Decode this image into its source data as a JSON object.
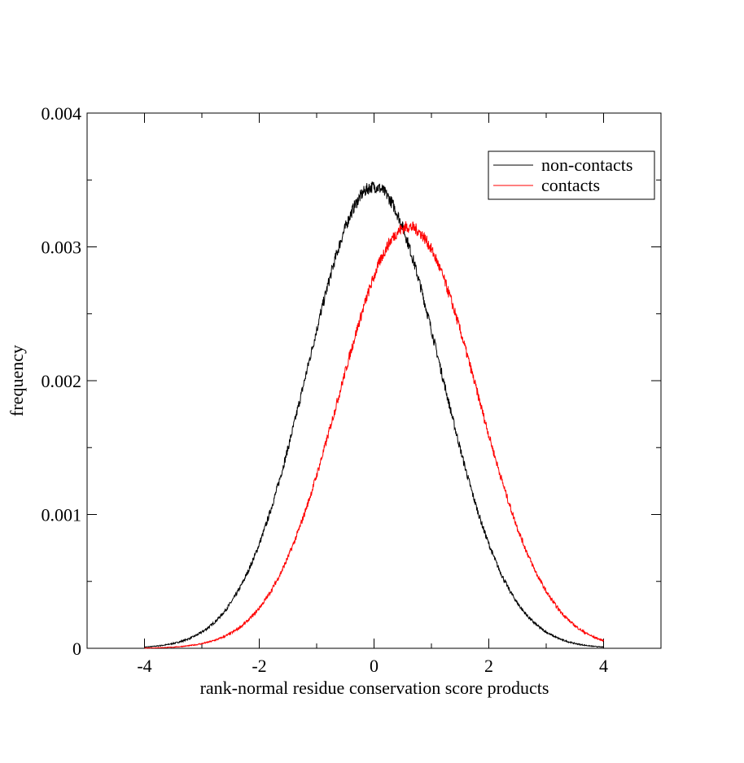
{
  "chart_data": {
    "type": "line",
    "title": "",
    "xlabel": "rank-normal residue conservation score products",
    "ylabel": "frequency",
    "xlim": [
      -5,
      5
    ],
    "ylim": [
      0,
      0.004
    ],
    "x_ticks": [
      -4,
      -2,
      0,
      2,
      4
    ],
    "x_tick_labels": [
      "-4",
      "-2",
      "0",
      "2",
      "4"
    ],
    "y_ticks": [
      0,
      0.001,
      0.002,
      0.003,
      0.004
    ],
    "y_tick_labels": [
      "0",
      "0.001",
      "0.002",
      "0.003",
      "0.004"
    ],
    "x_minor_step": 1,
    "y_minor_step": 0.0005,
    "grid": false,
    "legend_position": "top-right",
    "x_range": [
      -4,
      4
    ],
    "series": [
      {
        "name": "non-contacts",
        "color": "#000000",
        "peak_x": 0.0,
        "peak_y": 0.00345,
        "sigma": 1.16
      },
      {
        "name": "contacts",
        "color": "#ff0000",
        "peak_x": 0.6,
        "peak_y": 0.00315,
        "sigma": 1.2
      }
    ]
  }
}
